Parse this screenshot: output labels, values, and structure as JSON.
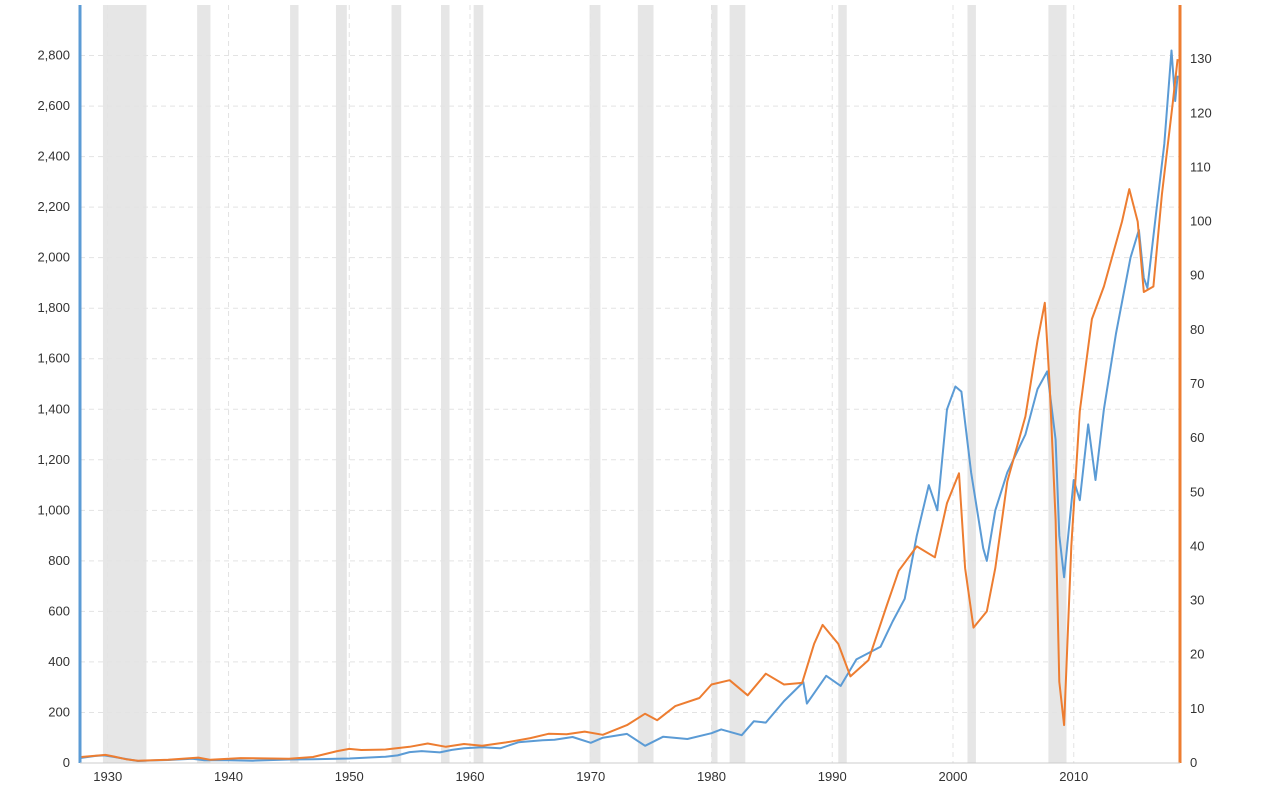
{
  "chart_data": {
    "type": "line",
    "x_axis": {
      "ticks": [
        {
          "value": 1930,
          "label": "1930"
        },
        {
          "value": 1940,
          "label": "1940"
        },
        {
          "value": 1950,
          "label": "1950"
        },
        {
          "value": 1960,
          "label": "1960"
        },
        {
          "value": 1970,
          "label": "1970"
        },
        {
          "value": 1980,
          "label": "1980"
        },
        {
          "value": 1990,
          "label": "1990"
        },
        {
          "value": 2000,
          "label": "2000"
        },
        {
          "value": 2010,
          "label": "2010"
        }
      ],
      "range": [
        1927.7,
        2018.8
      ]
    },
    "y_left": {
      "range": [
        0,
        3000
      ],
      "ticks": [
        {
          "value": 0,
          "label": "0"
        },
        {
          "value": 200,
          "label": "200"
        },
        {
          "value": 400,
          "label": "400"
        },
        {
          "value": 600,
          "label": "600"
        },
        {
          "value": 800,
          "label": "800"
        },
        {
          "value": 1000,
          "label": "1,000"
        },
        {
          "value": 1200,
          "label": "1,200"
        },
        {
          "value": 1400,
          "label": "1,400"
        },
        {
          "value": 1600,
          "label": "1,600"
        },
        {
          "value": 1800,
          "label": "1,800"
        },
        {
          "value": 2000,
          "label": "2,000"
        },
        {
          "value": 2200,
          "label": "2,200"
        },
        {
          "value": 2400,
          "label": "2,400"
        },
        {
          "value": 2600,
          "label": "2,600"
        },
        {
          "value": 2800,
          "label": "2,800"
        }
      ]
    },
    "y_right": {
      "range": [
        0,
        140
      ],
      "ticks": [
        {
          "value": 0,
          "label": "0"
        },
        {
          "value": 10,
          "label": "10"
        },
        {
          "value": 20,
          "label": "20"
        },
        {
          "value": 30,
          "label": "30"
        },
        {
          "value": 40,
          "label": "40"
        },
        {
          "value": 50,
          "label": "50"
        },
        {
          "value": 60,
          "label": "60"
        },
        {
          "value": 70,
          "label": "70"
        },
        {
          "value": 80,
          "label": "80"
        },
        {
          "value": 90,
          "label": "90"
        },
        {
          "value": 100,
          "label": "100"
        },
        {
          "value": 110,
          "label": "110"
        },
        {
          "value": 120,
          "label": "120"
        },
        {
          "value": 130,
          "label": "130"
        }
      ]
    },
    "grid": true,
    "colors": {
      "series_left": "#5b9bd5",
      "series_right": "#ed7d31",
      "recession": "#e6e6e6",
      "grid": "#e3e3e3",
      "text": "#333333"
    },
    "recessions": [
      [
        1929.6,
        1933.2
      ],
      [
        1937.4,
        1938.5
      ],
      [
        1945.1,
        1945.8
      ],
      [
        1948.9,
        1949.8
      ],
      [
        1953.5,
        1954.3
      ],
      [
        1957.6,
        1958.3
      ],
      [
        1960.3,
        1961.1
      ],
      [
        1969.9,
        1970.8
      ],
      [
        1973.9,
        1975.2
      ],
      [
        1980.0,
        1980.5
      ],
      [
        1981.5,
        1982.8
      ],
      [
        1990.5,
        1991.2
      ],
      [
        2001.2,
        2001.9
      ],
      [
        2007.9,
        2009.4
      ]
    ],
    "series": [
      {
        "axis": "left",
        "points": [
          [
            1927.8,
            20
          ],
          [
            1929.0,
            28
          ],
          [
            1929.7,
            30
          ],
          [
            1930.5,
            24
          ],
          [
            1931.5,
            16
          ],
          [
            1932.5,
            8
          ],
          [
            1933.5,
            10
          ],
          [
            1935.0,
            12
          ],
          [
            1937.0,
            17
          ],
          [
            1938.0,
            11
          ],
          [
            1940.0,
            11
          ],
          [
            1942.0,
            9
          ],
          [
            1945.0,
            14
          ],
          [
            1947.0,
            15
          ],
          [
            1950.0,
            18
          ],
          [
            1953.0,
            25
          ],
          [
            1954.0,
            30
          ],
          [
            1955.0,
            43
          ],
          [
            1956.0,
            47
          ],
          [
            1957.5,
            42
          ],
          [
            1958.5,
            52
          ],
          [
            1959.5,
            58
          ],
          [
            1961.0,
            62
          ],
          [
            1962.5,
            58
          ],
          [
            1964.0,
            82
          ],
          [
            1966.0,
            90
          ],
          [
            1967.0,
            92
          ],
          [
            1968.5,
            103
          ],
          [
            1970.0,
            80
          ],
          [
            1971.0,
            100
          ],
          [
            1973.0,
            115
          ],
          [
            1974.5,
            68
          ],
          [
            1976.0,
            104
          ],
          [
            1978.0,
            95
          ],
          [
            1980.0,
            118
          ],
          [
            1980.8,
            133
          ],
          [
            1982.5,
            110
          ],
          [
            1983.5,
            165
          ],
          [
            1984.5,
            160
          ],
          [
            1986.0,
            245
          ],
          [
            1987.6,
            320
          ],
          [
            1987.9,
            235
          ],
          [
            1989.5,
            345
          ],
          [
            1990.7,
            305
          ],
          [
            1992.0,
            410
          ],
          [
            1994.0,
            460
          ],
          [
            1995.0,
            560
          ],
          [
            1996.0,
            650
          ],
          [
            1997.0,
            900
          ],
          [
            1998.0,
            1100
          ],
          [
            1998.7,
            1000
          ],
          [
            1999.5,
            1400
          ],
          [
            2000.2,
            1490
          ],
          [
            2000.7,
            1470
          ],
          [
            2001.5,
            1150
          ],
          [
            2002.5,
            850
          ],
          [
            2002.8,
            800
          ],
          [
            2003.5,
            1000
          ],
          [
            2004.5,
            1150
          ],
          [
            2006.0,
            1300
          ],
          [
            2007.0,
            1480
          ],
          [
            2007.8,
            1550
          ],
          [
            2008.5,
            1280
          ],
          [
            2008.8,
            900
          ],
          [
            2009.2,
            735
          ],
          [
            2010.0,
            1120
          ],
          [
            2010.5,
            1040
          ],
          [
            2011.2,
            1340
          ],
          [
            2011.8,
            1120
          ],
          [
            2012.5,
            1400
          ],
          [
            2013.5,
            1700
          ],
          [
            2014.7,
            2000
          ],
          [
            2015.4,
            2110
          ],
          [
            2015.8,
            1920
          ],
          [
            2016.1,
            1880
          ],
          [
            2016.8,
            2170
          ],
          [
            2017.5,
            2450
          ],
          [
            2018.1,
            2820
          ],
          [
            2018.4,
            2620
          ],
          [
            2018.6,
            2720
          ]
        ]
      },
      {
        "axis": "right",
        "points": [
          [
            1927.8,
            1.1
          ],
          [
            1929.8,
            1.5
          ],
          [
            1930.5,
            1.2
          ],
          [
            1931.5,
            0.7
          ],
          [
            1932.5,
            0.4
          ],
          [
            1935.0,
            0.6
          ],
          [
            1937.5,
            1.0
          ],
          [
            1938.5,
            0.6
          ],
          [
            1941.0,
            0.9
          ],
          [
            1945.0,
            0.8
          ],
          [
            1947.0,
            1.1
          ],
          [
            1949.0,
            2.2
          ],
          [
            1950.0,
            2.6
          ],
          [
            1951.0,
            2.4
          ],
          [
            1953.0,
            2.5
          ],
          [
            1955.0,
            3.0
          ],
          [
            1956.5,
            3.6
          ],
          [
            1958.0,
            3.0
          ],
          [
            1959.5,
            3.5
          ],
          [
            1961.0,
            3.2
          ],
          [
            1963.0,
            3.8
          ],
          [
            1965.0,
            4.6
          ],
          [
            1966.5,
            5.4
          ],
          [
            1968.0,
            5.3
          ],
          [
            1969.5,
            5.8
          ],
          [
            1971.0,
            5.2
          ],
          [
            1973.0,
            7.0
          ],
          [
            1974.5,
            9.1
          ],
          [
            1975.5,
            7.9
          ],
          [
            1977.0,
            10.5
          ],
          [
            1979.0,
            12.0
          ],
          [
            1980.0,
            14.5
          ],
          [
            1981.5,
            15.3
          ],
          [
            1983.0,
            12.5
          ],
          [
            1984.5,
            16.5
          ],
          [
            1986.0,
            14.5
          ],
          [
            1987.5,
            14.8
          ],
          [
            1988.5,
            22.0
          ],
          [
            1989.2,
            25.5
          ],
          [
            1990.5,
            22.0
          ],
          [
            1991.5,
            16.0
          ],
          [
            1993.0,
            19.0
          ],
          [
            1994.5,
            29.0
          ],
          [
            1995.5,
            35.5
          ],
          [
            1997.0,
            40.0
          ],
          [
            1998.5,
            38.0
          ],
          [
            1999.5,
            48.0
          ],
          [
            2000.5,
            53.5
          ],
          [
            2001.0,
            36.0
          ],
          [
            2001.7,
            25.0
          ],
          [
            2002.8,
            28.0
          ],
          [
            2003.5,
            36.0
          ],
          [
            2004.5,
            52.0
          ],
          [
            2006.0,
            64.0
          ],
          [
            2007.0,
            78.0
          ],
          [
            2007.6,
            85.0
          ],
          [
            2008.0,
            70.0
          ],
          [
            2008.5,
            45.0
          ],
          [
            2008.8,
            15.0
          ],
          [
            2009.2,
            7.0
          ],
          [
            2009.8,
            40.0
          ],
          [
            2010.5,
            65.0
          ],
          [
            2011.5,
            82.0
          ],
          [
            2012.5,
            88.0
          ],
          [
            2014.0,
            100.0
          ],
          [
            2014.6,
            106.0
          ],
          [
            2015.3,
            100.0
          ],
          [
            2015.8,
            87.0
          ],
          [
            2016.6,
            88.0
          ],
          [
            2017.3,
            105.0
          ],
          [
            2018.2,
            122.0
          ],
          [
            2018.6,
            130.0
          ]
        ]
      }
    ]
  }
}
